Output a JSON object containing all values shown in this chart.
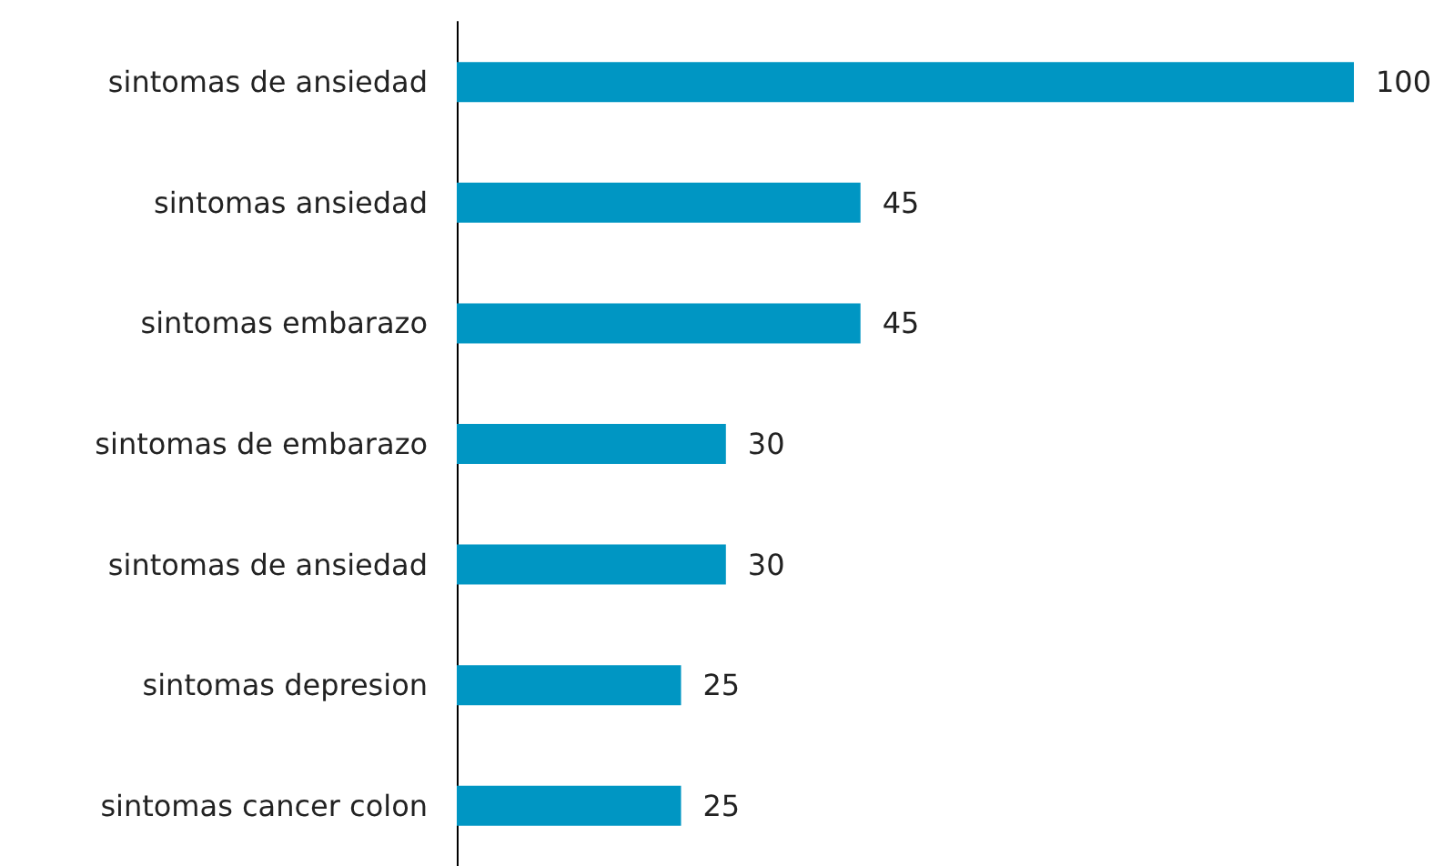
{
  "chart_data": {
    "type": "bar",
    "orientation": "horizontal",
    "categories": [
      "sintomas de ansiedad",
      "sintomas ansiedad",
      "sintomas embarazo",
      "sintomas de embarazo",
      "sintomas de ansiedad",
      "sintomas depresion",
      "sintomas cancer colon"
    ],
    "values": [
      100,
      45,
      45,
      30,
      30,
      25,
      25
    ],
    "color": "#0096c3",
    "xlim": [
      0,
      100
    ],
    "data_labels": true,
    "tick_labels": "y"
  }
}
